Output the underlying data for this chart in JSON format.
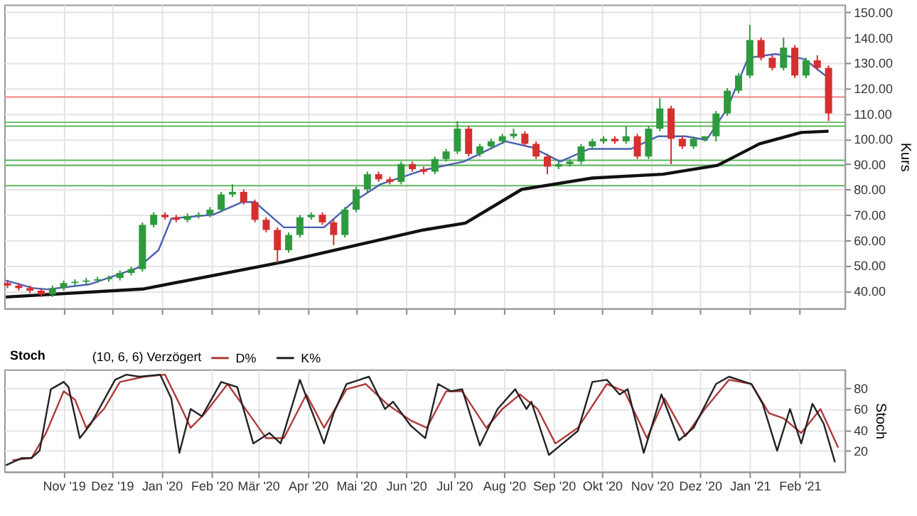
{
  "chart_data": [
    {
      "type": "candlestick",
      "ylabel": "Kurs",
      "grid": true,
      "tick_labels": "y",
      "xlim": [
        "2019-09-25",
        "2021-03-01"
      ],
      "xticks": [
        {
          "value": "2019-11-01",
          "label": null
        },
        {
          "value": "2019-12-01",
          "label": null
        },
        {
          "value": "2020-01-01",
          "label": null
        },
        {
          "value": "2020-02-01",
          "label": null
        },
        {
          "value": "2020-03-01",
          "label": null
        },
        {
          "value": "2020-04-01",
          "label": null
        },
        {
          "value": "2020-05-01",
          "label": null
        },
        {
          "value": "2020-06-01",
          "label": null
        },
        {
          "value": "2020-07-01",
          "label": null
        },
        {
          "value": "2020-08-01",
          "label": null
        },
        {
          "value": "2020-09-01",
          "label": null
        },
        {
          "value": "2020-10-01",
          "label": null
        },
        {
          "value": "2020-11-01",
          "label": null
        },
        {
          "value": "2020-12-01",
          "label": null
        },
        {
          "value": "2021-01-01",
          "label": null
        },
        {
          "value": "2021-02-01",
          "label": null
        }
      ],
      "ylim": [
        33,
        153
      ],
      "yticks": [
        {
          "value": 40,
          "label": "40.00"
        },
        {
          "value": 50,
          "label": "50.00"
        },
        {
          "value": 60,
          "label": "60.00"
        },
        {
          "value": 70,
          "label": "70.00"
        },
        {
          "value": 80,
          "label": "80.00"
        },
        {
          "value": 90,
          "label": "90.00"
        },
        {
          "value": 100,
          "label": "100.00"
        },
        {
          "value": 110,
          "label": "110.00"
        },
        {
          "value": 120,
          "label": "120.00"
        },
        {
          "value": 130,
          "label": "130.00"
        },
        {
          "value": 140,
          "label": "140.00"
        },
        {
          "value": 150,
          "label": "150.00"
        }
      ],
      "x": [
        "2019-09-27",
        "2019-10-04",
        "2019-10-11",
        "2019-10-18",
        "2019-10-25",
        "2019-11-01",
        "2019-11-08",
        "2019-11-15",
        "2019-11-22",
        "2019-11-29",
        "2019-12-06",
        "2019-12-13",
        "2019-12-20",
        "2019-12-27",
        "2020-01-03",
        "2020-01-10",
        "2020-01-17",
        "2020-01-24",
        "2020-01-31",
        "2020-02-07",
        "2020-02-14",
        "2020-02-21",
        "2020-02-28",
        "2020-03-06",
        "2020-03-13",
        "2020-03-20",
        "2020-03-27",
        "2020-04-03",
        "2020-04-10",
        "2020-04-17",
        "2020-04-24",
        "2020-05-01",
        "2020-05-08",
        "2020-05-15",
        "2020-05-22",
        "2020-05-29",
        "2020-06-05",
        "2020-06-12",
        "2020-06-19",
        "2020-06-26",
        "2020-07-03",
        "2020-07-10",
        "2020-07-17",
        "2020-07-24",
        "2020-07-31",
        "2020-08-07",
        "2020-08-14",
        "2020-08-21",
        "2020-08-28",
        "2020-09-04",
        "2020-09-11",
        "2020-09-18",
        "2020-09-25",
        "2020-10-02",
        "2020-10-09",
        "2020-10-16",
        "2020-10-23",
        "2020-10-30",
        "2020-11-06",
        "2020-11-13",
        "2020-11-20",
        "2020-11-27",
        "2020-12-04",
        "2020-12-11",
        "2020-12-18",
        "2020-12-25",
        "2021-01-01",
        "2021-01-08",
        "2021-01-15",
        "2021-01-22",
        "2021-01-29",
        "2021-02-05",
        "2021-02-12",
        "2021-02-19"
      ],
      "ohlc": [
        [
          43,
          44,
          41,
          42
        ],
        [
          42,
          43,
          40,
          41
        ],
        [
          41,
          42,
          39,
          40
        ],
        [
          40,
          41,
          37.5,
          38.5
        ],
        [
          38.5,
          42,
          37.5,
          41
        ],
        [
          41,
          44,
          40,
          43
        ],
        [
          43,
          44.5,
          42,
          43.5
        ],
        [
          43.5,
          45,
          42.5,
          44
        ],
        [
          44,
          45.5,
          43,
          44.5
        ],
        [
          44.5,
          46,
          43.5,
          45
        ],
        [
          45,
          48,
          44,
          47
        ],
        [
          47,
          49.5,
          46,
          48.5
        ],
        [
          48.5,
          67,
          47.5,
          66
        ],
        [
          66,
          71,
          65,
          70
        ],
        [
          70,
          71,
          68,
          69
        ],
        [
          69,
          70,
          67,
          68
        ],
        [
          68,
          70.5,
          67,
          69.5
        ],
        [
          69.5,
          71,
          68.5,
          70
        ],
        [
          70,
          73,
          69,
          72
        ],
        [
          72,
          79,
          71,
          78
        ],
        [
          78,
          82,
          77,
          79
        ],
        [
          79,
          80,
          74,
          75
        ],
        [
          75,
          76,
          67,
          68
        ],
        [
          68,
          69,
          63,
          64
        ],
        [
          64,
          65,
          51,
          56
        ],
        [
          56,
          63,
          55,
          62
        ],
        [
          62,
          70,
          61,
          69
        ],
        [
          69,
          71,
          68,
          70
        ],
        [
          70,
          71,
          66,
          67
        ],
        [
          67,
          68,
          58,
          62
        ],
        [
          62,
          73,
          61,
          72
        ],
        [
          72,
          81,
          71,
          80
        ],
        [
          80,
          87,
          79,
          86
        ],
        [
          86,
          87,
          83,
          84
        ],
        [
          84,
          85,
          82,
          83
        ],
        [
          83,
          91,
          82,
          90
        ],
        [
          90,
          91,
          87,
          88
        ],
        [
          88,
          89,
          86,
          87
        ],
        [
          87,
          93,
          86,
          92
        ],
        [
          92,
          96,
          91,
          95
        ],
        [
          95,
          107,
          94,
          104
        ],
        [
          104,
          105,
          93,
          94
        ],
        [
          94,
          98,
          93,
          97
        ],
        [
          97,
          100,
          96,
          99
        ],
        [
          99,
          102,
          98,
          101
        ],
        [
          101,
          104,
          100,
          102
        ],
        [
          102,
          103,
          97,
          98
        ],
        [
          98,
          99,
          92,
          93
        ],
        [
          93,
          94,
          86,
          89
        ],
        [
          89,
          91,
          88,
          90
        ],
        [
          90,
          92,
          89,
          91
        ],
        [
          91,
          98,
          90,
          97
        ],
        [
          97,
          100,
          96,
          99
        ],
        [
          99,
          101,
          98,
          100
        ],
        [
          100,
          101,
          98,
          99
        ],
        [
          99,
          105,
          98,
          101
        ],
        [
          101,
          102,
          92,
          93
        ],
        [
          93,
          105,
          92,
          104
        ],
        [
          104,
          116,
          103,
          112
        ],
        [
          112,
          113,
          90,
          100
        ],
        [
          100,
          101,
          96,
          97
        ],
        [
          97,
          101,
          96,
          100
        ],
        [
          100,
          101,
          99,
          101
        ],
        [
          101,
          111,
          99,
          110
        ],
        [
          110,
          120,
          109,
          119
        ],
        [
          119,
          126,
          118,
          125
        ],
        [
          125,
          145,
          124,
          139
        ],
        [
          139,
          140,
          131,
          132
        ],
        [
          132,
          133,
          127,
          128
        ],
        [
          128,
          140,
          127,
          136
        ],
        [
          136,
          137,
          124,
          125
        ],
        [
          125,
          132,
          124,
          131
        ],
        [
          131,
          133,
          127,
          128
        ],
        [
          128,
          129,
          107,
          110
        ]
      ],
      "colors": [
        "#d62f2f",
        "#d62f2f",
        "#d62f2f",
        "#d62f2f",
        "#2e9a3e",
        "#2e9a3e",
        "#2e9a3e",
        "#2e9a3e",
        "#2e9a3e",
        "#2e9a3e",
        "#2e9a3e",
        "#2e9a3e",
        "#2e9a3e",
        "#2e9a3e",
        "#d62f2f",
        "#d62f2f",
        "#2e9a3e",
        "#2e9a3e",
        "#2e9a3e",
        "#2e9a3e",
        "#2e9a3e",
        "#d62f2f",
        "#d62f2f",
        "#d62f2f",
        "#d62f2f",
        "#2e9a3e",
        "#2e9a3e",
        "#2e9a3e",
        "#d62f2f",
        "#d62f2f",
        "#2e9a3e",
        "#2e9a3e",
        "#2e9a3e",
        "#d62f2f",
        "#d62f2f",
        "#2e9a3e",
        "#d62f2f",
        "#d62f2f",
        "#2e9a3e",
        "#2e9a3e",
        "#2e9a3e",
        "#d62f2f",
        "#2e9a3e",
        "#2e9a3e",
        "#2e9a3e",
        "#2e9a3e",
        "#d62f2f",
        "#d62f2f",
        "#d62f2f",
        "#2e9a3e",
        "#2e9a3e",
        "#2e9a3e",
        "#2e9a3e",
        "#2e9a3e",
        "#d62f2f",
        "#2e9a3e",
        "#d62f2f",
        "#2e9a3e",
        "#2e9a3e",
        "#d62f2f",
        "#d62f2f",
        "#2e9a3e",
        "#2e9a3e",
        "#2e9a3e",
        "#2e9a3e",
        "#2e9a3e",
        "#2e9a3e",
        "#d62f2f",
        "#d62f2f",
        "#2e9a3e",
        "#d62f2f",
        "#2e9a3e",
        "#d62f2f",
        "#d62f2f"
      ],
      "series": [
        {
          "type": "line",
          "color": "#4a5fb0",
          "x": [
            "2019-09-26",
            "2019-10-13",
            "2019-10-22",
            "2019-11-17",
            "2019-12-17",
            "2019-12-30",
            "2020-01-07",
            "2020-02-02",
            "2020-02-20",
            "2020-02-28",
            "2020-03-17",
            "2020-03-30",
            "2020-04-11",
            "2020-04-29",
            "2020-05-16",
            "2020-06-11",
            "2020-07-07",
            "2020-08-02",
            "2020-08-19",
            "2020-09-05",
            "2020-09-23",
            "2020-10-19",
            "2020-11-05",
            "2020-11-22",
            "2020-12-05",
            "2020-12-18",
            "2020-12-31",
            "2021-01-17",
            "2021-02-04",
            "2021-02-17"
          ],
          "values": [
            44,
            41,
            40.5,
            42.5,
            49,
            56,
            68.5,
            70,
            75,
            75,
            65,
            65,
            65,
            75,
            82,
            87.5,
            91,
            99,
            96.5,
            91,
            96,
            96,
            101,
            101,
            99.5,
            112,
            132,
            133.5,
            131.5,
            125
          ]
        },
        {
          "type": "line",
          "color": "#111111",
          "x": [
            "2019-09-26",
            "2019-12-21",
            "2020-03-17",
            "2020-06-12",
            "2020-07-08",
            "2020-08-12",
            "2020-09-25",
            "2020-11-08",
            "2020-12-12",
            "2021-01-07",
            "2021-02-02",
            "2021-02-19"
          ],
          "values": [
            37.5,
            40.7,
            51.4,
            64,
            66.7,
            80,
            84.5,
            86,
            89.5,
            98,
            102.5,
            103
          ]
        }
      ],
      "ref_lines": [
        {
          "axis": "y",
          "value": 106.5,
          "color": "#5cb85c"
        },
        {
          "axis": "y",
          "value": 105,
          "color": "#5cb85c"
        },
        {
          "axis": "y",
          "value": 91.5,
          "color": "#5cb85c"
        },
        {
          "axis": "y",
          "value": 89.5,
          "color": "#5cb85c"
        },
        {
          "axis": "y",
          "value": 81.5,
          "color": "#5cb85c"
        },
        {
          "axis": "y",
          "value": 116.5,
          "color": "#f08080"
        }
      ]
    },
    {
      "type": "line",
      "title": "Stoch",
      "legend_title": "(10, 6, 6) Verzögert",
      "legend": "top left",
      "ylabel": "Stoch",
      "grid": true,
      "xlim": [
        "2019-09-25",
        "2021-03-01"
      ],
      "xticks": [
        {
          "value": "2019-11-01",
          "label": "Nov '19"
        },
        {
          "value": "2019-12-01",
          "label": "Dez '19"
        },
        {
          "value": "2020-01-01",
          "label": "Jan '20"
        },
        {
          "value": "2020-02-01",
          "label": "Feb '20"
        },
        {
          "value": "2020-03-01",
          "label": "Mär '20"
        },
        {
          "value": "2020-04-01",
          "label": "Apr '20"
        },
        {
          "value": "2020-05-01",
          "label": "Mai '20"
        },
        {
          "value": "2020-06-01",
          "label": "Jun '20"
        },
        {
          "value": "2020-07-01",
          "label": "Jul '20"
        },
        {
          "value": "2020-08-01",
          "label": "Aug '20"
        },
        {
          "value": "2020-09-01",
          "label": "Sep '20"
        },
        {
          "value": "2020-10-01",
          "label": "Okt '20"
        },
        {
          "value": "2020-11-01",
          "label": "Nov '20"
        },
        {
          "value": "2020-12-01",
          "label": "Dez '20"
        },
        {
          "value": "2021-01-01",
          "label": "Jan '21"
        },
        {
          "value": "2021-02-01",
          "label": "Feb '21"
        }
      ],
      "ylim": [
        0,
        98
      ],
      "yticks": [
        20,
        40,
        60,
        80
      ],
      "series": [
        {
          "name": "D%",
          "color": "#b03a3a",
          "x": [
            "2019-09-30",
            "2019-10-12",
            "2019-10-21",
            "2019-11-01",
            "2019-11-08",
            "2019-11-15",
            "2019-11-26",
            "2019-12-06",
            "2019-12-21",
            "2020-01-03",
            "2020-01-12",
            "2020-01-19",
            "2020-01-28",
            "2020-02-11",
            "2020-02-24",
            "2020-03-06",
            "2020-03-17",
            "2020-03-31",
            "2020-04-11",
            "2020-04-25",
            "2020-05-07",
            "2020-05-20",
            "2020-06-04",
            "2020-06-14",
            "2020-06-26",
            "2020-07-06",
            "2020-07-21",
            "2020-07-31",
            "2020-08-11",
            "2020-08-22",
            "2020-09-02",
            "2020-09-16",
            "2020-10-04",
            "2020-10-15",
            "2020-10-29",
            "2020-11-09",
            "2020-11-22",
            "2020-12-04",
            "2020-12-19",
            "2021-01-02",
            "2021-01-13",
            "2021-01-22",
            "2021-02-02",
            "2021-02-14",
            "2021-02-25"
          ],
          "values": [
            11,
            13,
            37,
            77,
            69,
            42,
            60,
            86,
            91,
            93,
            65,
            42,
            56,
            84,
            56,
            32,
            32,
            74,
            42,
            79,
            84,
            65,
            49,
            42,
            77,
            77,
            42,
            60,
            74,
            60,
            27,
            42,
            84,
            77,
            32,
            70,
            34,
            60,
            88,
            84,
            56,
            51,
            37,
            60,
            23
          ]
        },
        {
          "name": "K%",
          "color": "#222222",
          "x": [
            "2019-09-26",
            "2019-10-06",
            "2019-10-12",
            "2019-10-17",
            "2019-10-24",
            "2019-11-01",
            "2019-11-04",
            "2019-11-11",
            "2019-11-18",
            "2019-12-03",
            "2019-12-10",
            "2019-12-18",
            "2019-12-31",
            "2020-01-07",
            "2020-01-12",
            "2020-01-19",
            "2020-01-26",
            "2020-02-07",
            "2020-02-17",
            "2020-02-27",
            "2020-03-08",
            "2020-03-15",
            "2020-03-27",
            "2020-04-11",
            "2020-04-17",
            "2020-04-25",
            "2020-05-09",
            "2020-05-19",
            "2020-05-24",
            "2020-06-04",
            "2020-06-13",
            "2020-06-21",
            "2020-06-29",
            "2020-07-06",
            "2020-07-17",
            "2020-07-28",
            "2020-08-08",
            "2020-08-15",
            "2020-08-18",
            "2020-08-29",
            "2020-09-05",
            "2020-09-16",
            "2020-09-25",
            "2020-10-04",
            "2020-10-12",
            "2020-10-17",
            "2020-10-27",
            "2020-11-07",
            "2020-11-18",
            "2020-11-27",
            "2020-12-11",
            "2020-12-19",
            "2021-01-02",
            "2021-01-09",
            "2021-01-18",
            "2021-01-26",
            "2021-02-02",
            "2021-02-09",
            "2021-02-16",
            "2021-02-23"
          ],
          "values": [
            6,
            13,
            13,
            20,
            79,
            86,
            81,
            32,
            46,
            88,
            93,
            91,
            93,
            70,
            18,
            60,
            53,
            86,
            81,
            27,
            37,
            27,
            88,
            27,
            56,
            84,
            91,
            60,
            67,
            44,
            32,
            84,
            77,
            79,
            25,
            60,
            79,
            60,
            67,
            16,
            25,
            39,
            86,
            88,
            74,
            79,
            18,
            74,
            30,
            42,
            84,
            91,
            84,
            65,
            20,
            60,
            27,
            65,
            46,
            9
          ]
        }
      ]
    }
  ]
}
